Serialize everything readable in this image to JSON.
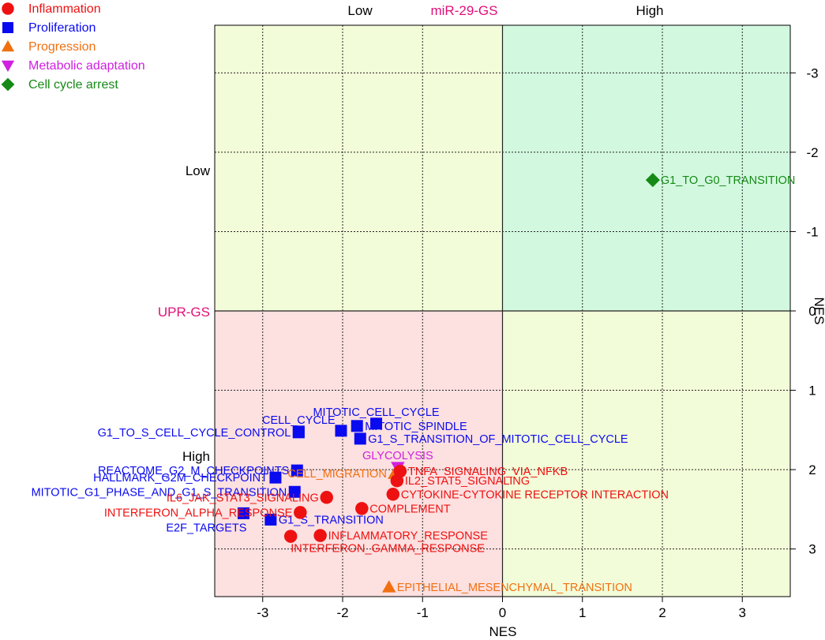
{
  "chart_data": {
    "type": "scatter",
    "title": "miR-29-GS",
    "xlabel": "NES",
    "ylabel": "NES",
    "xlim": [
      -3.6,
      3.6
    ],
    "ylim": [
      -3.6,
      3.6
    ],
    "y_inverted": true,
    "xticks": [
      "-3",
      "-2",
      "-1",
      "0",
      "1",
      "2",
      "3"
    ],
    "yticks": [
      "-3",
      "-2",
      "-1",
      "0",
      "1",
      "2",
      "3"
    ],
    "top_labels": {
      "left": "Low",
      "right": "High"
    },
    "side_title": "UPR-GS",
    "side_labels": {
      "upper": "Low",
      "lower": "High"
    },
    "quadrant_colors": {
      "low_low": "#f3fcd8",
      "high_low": "#d2f9e0",
      "low_high": "#fde0e0",
      "high_high": "#f3fcd8"
    },
    "categories": [
      {
        "name": "Inflammation",
        "color": "#ee1111",
        "shape": "circle"
      },
      {
        "name": "Proliferation",
        "color": "#0a0af0",
        "shape": "square"
      },
      {
        "name": "Progression",
        "color": "#f07010",
        "shape": "triangle-up"
      },
      {
        "name": "Metabolic adaptation",
        "color": "#d020e0",
        "shape": "triangle-down"
      },
      {
        "name": "Cell cycle arrest",
        "color": "#168a16",
        "shape": "diamond"
      }
    ],
    "points": [
      {
        "label": "G1_TO_G0_TRANSITION",
        "category": "Cell cycle arrest",
        "x": 1.88,
        "y": -1.65,
        "anchor": "right"
      },
      {
        "label": "CELL_CYCLE",
        "category": "Proliferation",
        "x": -2.55,
        "y": 1.52,
        "anchor": "top"
      },
      {
        "label": "MITOTIC_CELL_CYCLE",
        "category": "Proliferation",
        "x": -1.58,
        "y": 1.42,
        "anchor": "top"
      },
      {
        "label": "MITOTIC_SPINDLE",
        "category": "Proliferation",
        "x": -1.82,
        "y": 1.45,
        "anchor": "right"
      },
      {
        "label": "",
        "category": "Proliferation",
        "x": -2.02,
        "y": 1.51,
        "anchor": "none"
      },
      {
        "label": "G1_S_TRANSITION_OF_MITOTIC_CELL_CYCLE",
        "category": "Proliferation",
        "x": -1.78,
        "y": 1.61,
        "anchor": "right"
      },
      {
        "label": "G1_TO_S_CELL_CYCLE_CONTROL",
        "category": "Proliferation",
        "x": -2.55,
        "y": 1.53,
        "anchor": "left"
      },
      {
        "label": "REACTOME_G2_M_CHECKPOINTS",
        "category": "Proliferation",
        "x": -2.57,
        "y": 2.01,
        "anchor": "left"
      },
      {
        "label": "HALLMARK_G2M_CHECKPOINT",
        "category": "Proliferation",
        "x": -2.84,
        "y": 2.1,
        "anchor": "left"
      },
      {
        "label": "MITOTIC_G1_PHASE_AND_G1_S_TRANSITION",
        "category": "Proliferation",
        "x": -2.6,
        "y": 2.28,
        "anchor": "left"
      },
      {
        "label": "G1_S_TRANSITION",
        "category": "Proliferation",
        "x": -2.9,
        "y": 2.63,
        "anchor": "right"
      },
      {
        "label": "E2F_TARGETS",
        "category": "Proliferation",
        "x": -3.24,
        "y": 2.55,
        "anchor": "below-left"
      },
      {
        "label": "CELL_MIGRATION",
        "category": "Progression",
        "x": -1.35,
        "y": 2.05,
        "anchor": "left"
      },
      {
        "label": "EPITHELIAL_MESENCHYMAL_TRANSITION",
        "category": "Progression",
        "x": -1.42,
        "y": 3.48,
        "anchor": "right"
      },
      {
        "label": "GLYCOLYSIS",
        "category": "Metabolic adaptation",
        "x": -1.31,
        "y": 1.97,
        "anchor": "top"
      },
      {
        "label": "TNFA_SIGNALING_VIA_NFKB",
        "category": "Inflammation",
        "x": -1.28,
        "y": 2.02,
        "anchor": "right"
      },
      {
        "label": "IL2_STAT5_SIGNALING",
        "category": "Inflammation",
        "x": -1.32,
        "y": 2.14,
        "anchor": "right"
      },
      {
        "label": "CYTOKINE-CYTOKINE RECEPTOR INTERACTION",
        "category": "Inflammation",
        "x": -1.37,
        "y": 2.31,
        "anchor": "right"
      },
      {
        "label": "COMPLEMENT",
        "category": "Inflammation",
        "x": -1.76,
        "y": 2.49,
        "anchor": "right"
      },
      {
        "label": "IL6_JAK_STAT3_SIGNALING",
        "category": "Inflammation",
        "x": -2.2,
        "y": 2.35,
        "anchor": "left"
      },
      {
        "label": "INTERFERON_ALPHA_RESPONSE",
        "category": "Inflammation",
        "x": -2.53,
        "y": 2.54,
        "anchor": "left"
      },
      {
        "label": "INFLAMMATORY_RESPONSE",
        "category": "Inflammation",
        "x": -2.28,
        "y": 2.83,
        "anchor": "right"
      },
      {
        "label": "INTERFERON_GAMMA_RESPONSE",
        "category": "Inflammation",
        "x": -2.65,
        "y": 2.84,
        "anchor": "below"
      }
    ]
  }
}
